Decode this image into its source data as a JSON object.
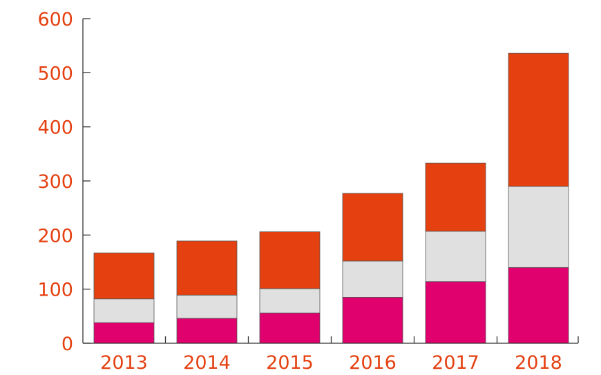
{
  "chart_data": {
    "type": "bar",
    "stacked": true,
    "categories": [
      "2013",
      "2014",
      "2015",
      "2016",
      "2017",
      "2018"
    ],
    "series": [
      {
        "values": [
          38,
          46,
          56,
          85,
          114,
          140
        ],
        "color": "#e0006e"
      },
      {
        "values": [
          44,
          43,
          45,
          67,
          93,
          150
        ],
        "color": "#e0e0e0"
      },
      {
        "values": [
          85,
          100,
          105,
          125,
          126,
          246
        ],
        "color": "#e54010"
      }
    ],
    "ylim": [
      0,
      600
    ],
    "yticks": [
      "0",
      "100",
      "200",
      "300",
      "400",
      "500",
      "600"
    ],
    "tick_label_color": "#e54010",
    "grid": false,
    "legend": "none",
    "title": "",
    "xlabel": "",
    "ylabel": ""
  }
}
